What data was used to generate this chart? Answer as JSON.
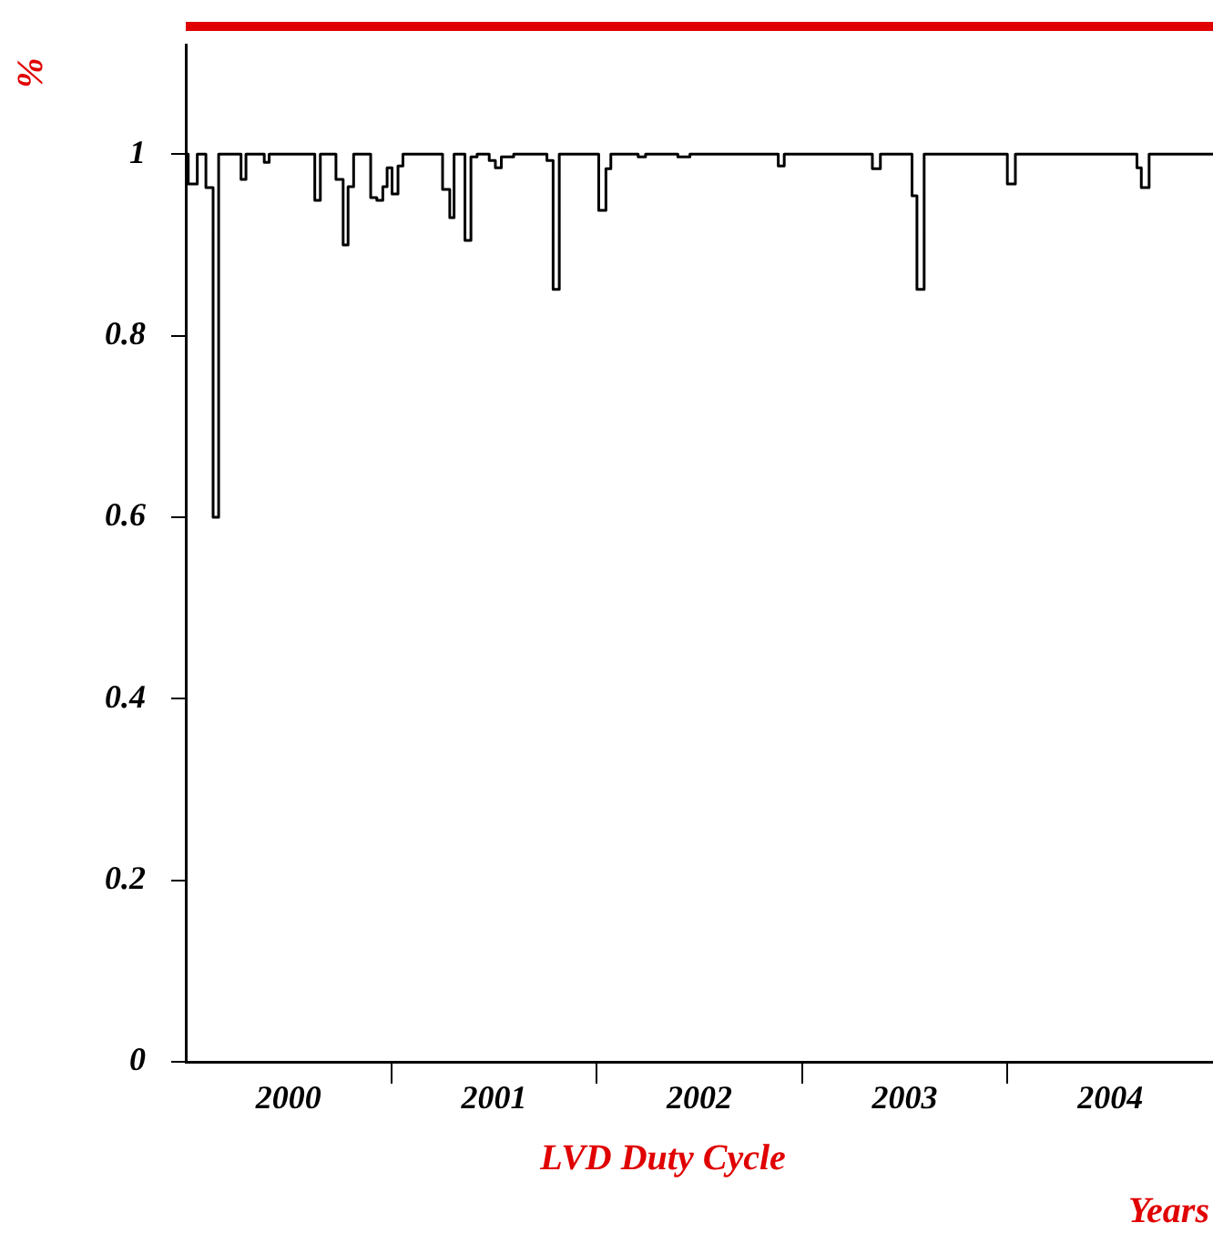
{
  "chart_data": {
    "type": "step",
    "title": "LVD Duty Cycle",
    "xlabel": "Years",
    "ylabel": "%",
    "x": [
      2000.0,
      2000.012,
      2000.056,
      2000.098,
      2000.133,
      2000.16,
      2000.269,
      2000.293,
      2000.382,
      2000.406,
      2000.628,
      2000.655,
      2000.731,
      2000.766,
      2000.79,
      2000.817,
      2000.9,
      2000.93,
      2000.959,
      2000.98,
      2001.004,
      2001.033,
      2001.057,
      2001.25,
      2001.285,
      2001.306,
      2001.359,
      2001.388,
      2001.418,
      2001.477,
      2001.507,
      2001.536,
      2001.596,
      2001.758,
      2001.788,
      2001.818,
      2002.01,
      2002.045,
      2002.069,
      2002.202,
      2002.238,
      2002.395,
      2002.454,
      2002.884,
      2002.913,
      2003.342,
      2003.381,
      2003.535,
      2003.559,
      2003.594,
      2003.999,
      2004.038,
      2004.63,
      2004.651,
      2004.689,
      2005.0
    ],
    "values": [
      1.0,
      0.967,
      1.0,
      0.963,
      0.6,
      1.0,
      0.972,
      1.0,
      0.991,
      1.0,
      0.949,
      1.0,
      0.972,
      0.9,
      0.964,
      1.0,
      0.952,
      0.949,
      0.964,
      0.985,
      0.956,
      0.987,
      1.0,
      0.961,
      0.93,
      1.0,
      0.905,
      0.997,
      1.0,
      0.993,
      0.985,
      0.997,
      1.0,
      0.993,
      0.851,
      1.0,
      0.938,
      0.984,
      1.0,
      0.997,
      1.0,
      0.997,
      1.0,
      0.987,
      1.0,
      0.984,
      1.0,
      0.954,
      0.851,
      1.0,
      0.967,
      1.0,
      0.985,
      0.963,
      1.0,
      1.0
    ],
    "color": "#000000",
    "xlim": [
      2000,
      2005
    ],
    "xticks": [
      {
        "value": 2000.5,
        "label": "2000"
      },
      {
        "value": 2001,
        "label": null
      },
      {
        "value": 2001.5,
        "label": "2001"
      },
      {
        "value": 2002,
        "label": null
      },
      {
        "value": 2002.5,
        "label": "2002"
      },
      {
        "value": 2003,
        "label": null
      },
      {
        "value": 2003.5,
        "label": "2003"
      },
      {
        "value": 2004,
        "label": null
      },
      {
        "value": 2004.5,
        "label": "2004"
      }
    ],
    "ylim": [
      0,
      1.12
    ],
    "yticks": [
      0,
      0.2,
      0.4,
      0.6,
      0.8,
      1
    ],
    "grid": false,
    "legend": false,
    "marker": "none"
  }
}
